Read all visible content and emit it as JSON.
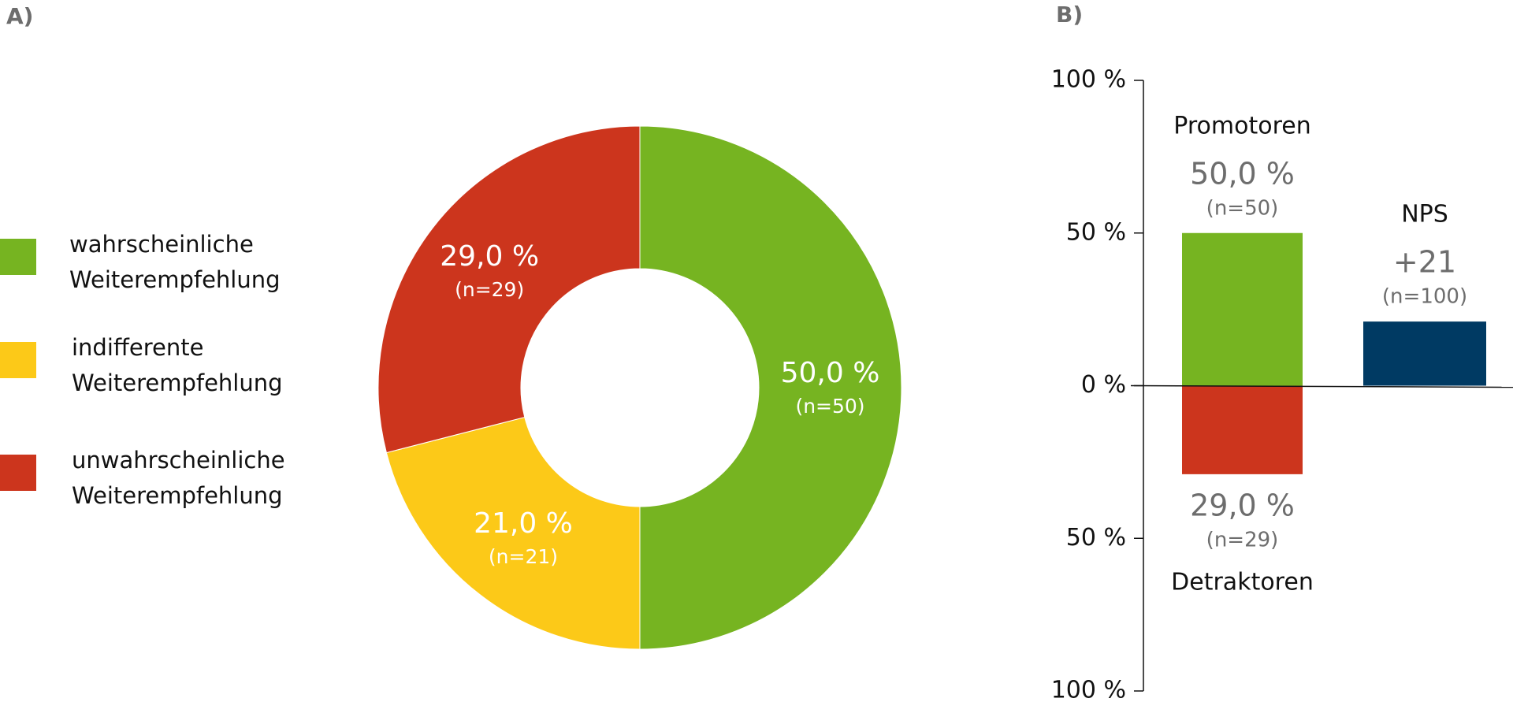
{
  "chart_data": [
    {
      "type": "donut",
      "panel_label": "A)",
      "categories": [
        "wahrscheinliche Weiterempfehlung",
        "indifferente Weiterempfehlung",
        "unwahrscheinliche Weiterempfehlung"
      ],
      "values": [
        50,
        21,
        29
      ],
      "value_labels": [
        "50,0 %",
        "21,0 %",
        "29,0 %"
      ],
      "n_labels": [
        "(n=50)",
        "(n=21)",
        "(n=29)"
      ],
      "colors": [
        "#76b421",
        "#fcc918",
        "#cc351d"
      ]
    },
    {
      "type": "bar",
      "panel_label": "B)",
      "ylim": [
        -100,
        100
      ],
      "yticks": [
        {
          "value": 100,
          "label": "100 %"
        },
        {
          "value": 50,
          "label": "50 %"
        },
        {
          "value": 0,
          "label": "0 %"
        },
        {
          "value": -50,
          "label": "50 %"
        },
        {
          "value": -100,
          "label": "100 %"
        }
      ],
      "columns": [
        [
          {
            "name": "Promotoren",
            "value": 50,
            "value_label": "50,0 %",
            "n_label": "(n=50)",
            "color": "#76b421"
          },
          {
            "name": "Detraktoren",
            "value": -29,
            "value_label": "29,0 %",
            "n_label": "(n=29)",
            "color": "#cc351d"
          }
        ],
        [
          {
            "name": "NPS",
            "value": 21,
            "value_label": "+21",
            "n_label": "(n=100)",
            "color": "#003a63"
          }
        ]
      ]
    }
  ]
}
